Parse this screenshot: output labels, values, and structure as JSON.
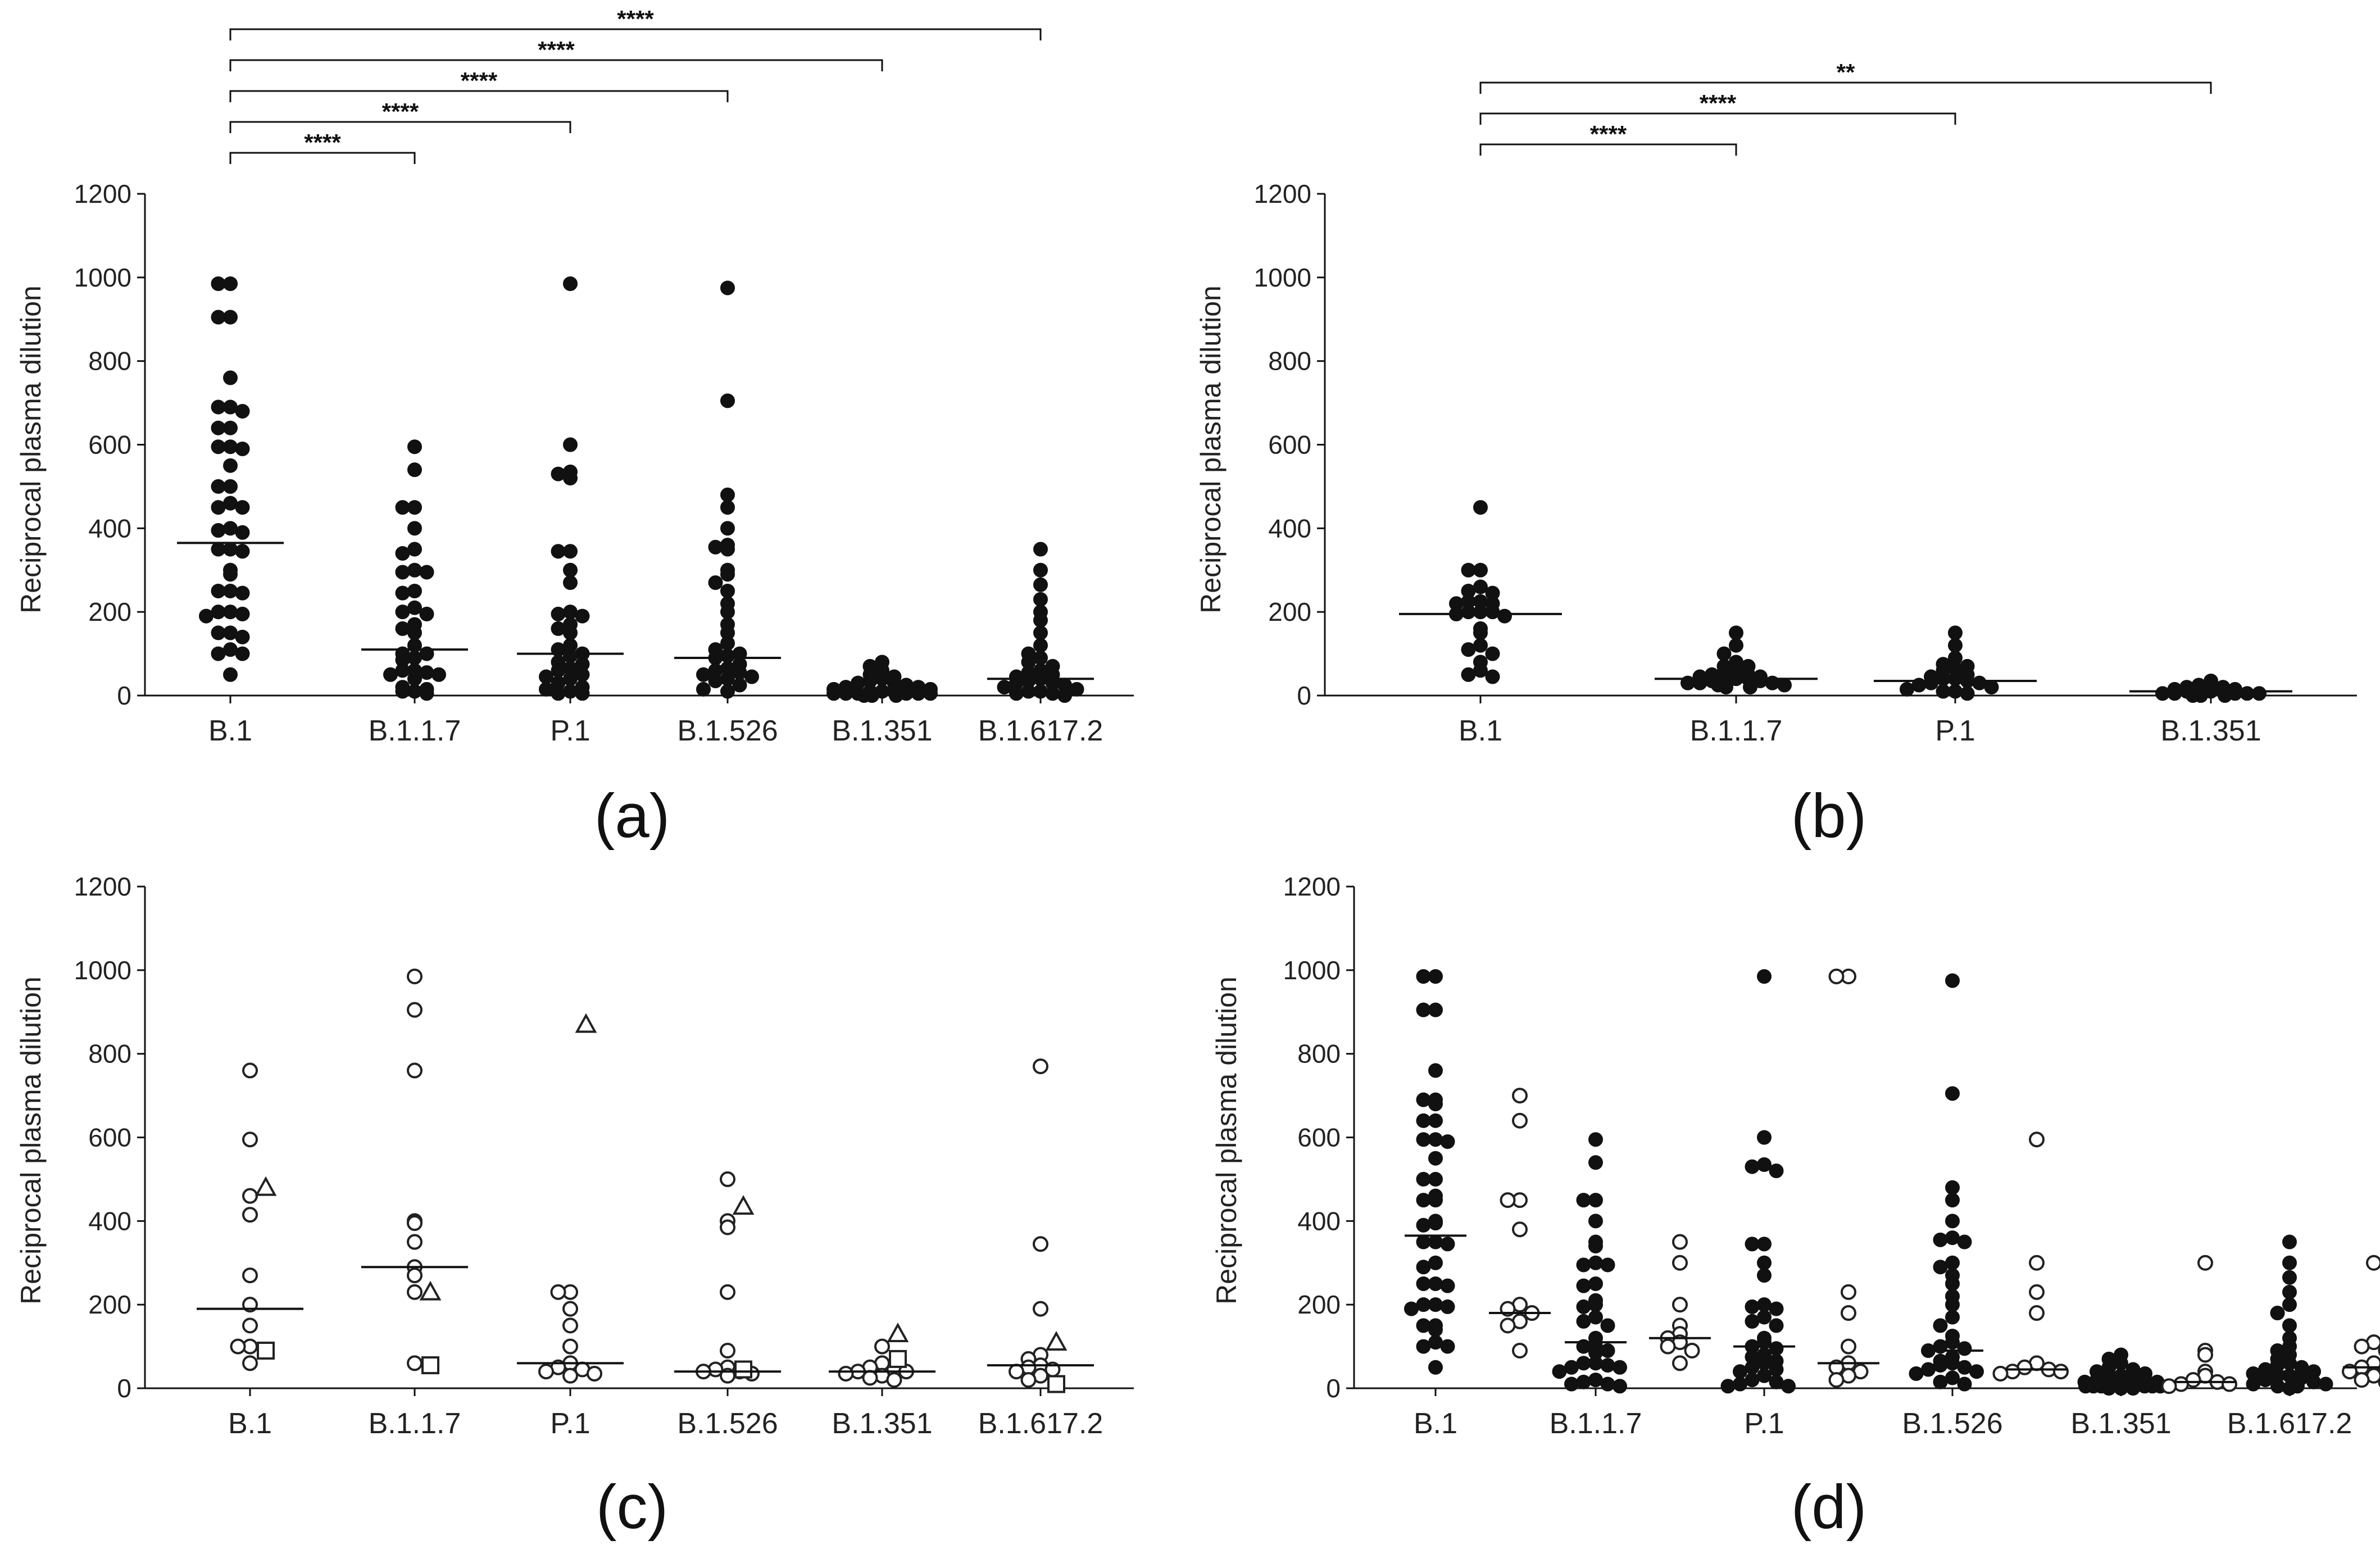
{
  "chart_data": [
    {
      "panel_label": "(a)",
      "type": "scatter",
      "ylabel": "Reciprocal plasma dilution",
      "ylim": [
        0,
        1200
      ],
      "yticks": [
        "0",
        "200",
        "400",
        "600",
        "800",
        "1000",
        "1200"
      ],
      "categories": [
        "B.1",
        "B.1.1.7",
        "P.1",
        "B.1.526",
        "B.1.351",
        "B.1.617.2"
      ],
      "medians": [
        365,
        110,
        100,
        90,
        10,
        40
      ],
      "series": [
        {
          "name": "filled",
          "groups": [
            [
              985,
              985,
              905,
              905,
              760,
              690,
              690,
              680,
              640,
              640,
              595,
              595,
              590,
              550,
              500,
              500,
              460,
              450,
              450,
              400,
              395,
              390,
              350,
              350,
              345,
              300,
              290,
              250,
              250,
              245,
              200,
              200,
              195,
              190,
              150,
              150,
              140,
              110,
              100,
              100,
              50
            ],
            [
              595,
              540,
              450,
              450,
              400,
              350,
              340,
              300,
              295,
              295,
              250,
              245,
              210,
              200,
              195,
              170,
              160,
              150,
              120,
              100,
              100,
              90,
              85,
              60,
              60,
              55,
              50,
              50,
              40,
              20,
              15,
              10,
              10,
              5
            ],
            [
              985,
              600,
              535,
              530,
              520,
              345,
              345,
              300,
              270,
              200,
              195,
              190,
              170,
              160,
              150,
              120,
              110,
              100,
              95,
              80,
              75,
              65,
              60,
              50,
              45,
              40,
              30,
              20,
              15,
              10,
              5,
              5
            ],
            [
              975,
              705,
              480,
              450,
              400,
              360,
              355,
              350,
              300,
              290,
              270,
              250,
              220,
              200,
              170,
              150,
              125,
              110,
              100,
              95,
              90,
              75,
              65,
              60,
              55,
              50,
              45,
              40,
              35,
              25,
              15,
              10
            ],
            [
              80,
              70,
              60,
              50,
              45,
              40,
              35,
              30,
              30,
              25,
              20,
              20,
              15,
              15,
              10,
              10,
              10,
              5,
              5,
              5,
              5,
              5,
              5,
              0,
              0,
              0
            ],
            [
              350,
              300,
              265,
              230,
              200,
              180,
              150,
              120,
              100,
              90,
              80,
              70,
              60,
              55,
              50,
              45,
              40,
              35,
              30,
              30,
              25,
              20,
              15,
              10,
              10,
              5,
              5,
              0
            ]
          ]
        }
      ],
      "significance": [
        {
          "from": "B.1",
          "to": "B.1.1.7",
          "label": "****"
        },
        {
          "from": "B.1",
          "to": "P.1",
          "label": "****"
        },
        {
          "from": "B.1",
          "to": "B.1.526",
          "label": "****"
        },
        {
          "from": "B.1",
          "to": "B.1.351",
          "label": "****"
        },
        {
          "from": "B.1",
          "to": "B.1.617.2",
          "label": "****"
        }
      ]
    },
    {
      "panel_label": "(b)",
      "type": "scatter",
      "ylabel": "Reciprocal plasma dilution",
      "ylim": [
        0,
        1200
      ],
      "yticks": [
        "0",
        "200",
        "400",
        "600",
        "800",
        "1000",
        "1200"
      ],
      "categories": [
        "B.1",
        "B.1.1.7",
        "P.1",
        "B.1.351"
      ],
      "medians": [
        195,
        40,
        35,
        10
      ],
      "series": [
        {
          "name": "filled",
          "groups": [
            [
              450,
              300,
              300,
              260,
              250,
              245,
              225,
              225,
              220,
              220,
              200,
              200,
              200,
              195,
              190,
              160,
              150,
              120,
              110,
              100,
              80,
              60,
              50,
              45
            ],
            [
              150,
              120,
              100,
              80,
              70,
              70,
              60,
              55,
              50,
              50,
              45,
              45,
              40,
              40,
              40,
              35,
              35,
              30,
              30,
              30,
              25,
              25,
              20,
              20
            ],
            [
              150,
              120,
              90,
              75,
              70,
              65,
              60,
              50,
              45,
              40,
              40,
              35,
              30,
              30,
              25,
              20,
              15,
              10,
              10,
              5
            ],
            [
              35,
              25,
              20,
              20,
              15,
              15,
              10,
              10,
              10,
              10,
              5,
              5,
              5,
              5,
              5,
              0,
              0,
              0
            ]
          ]
        }
      ],
      "significance": [
        {
          "from": "B.1",
          "to": "B.1.1.7",
          "label": "****"
        },
        {
          "from": "B.1",
          "to": "P.1",
          "label": "****"
        },
        {
          "from": "B.1",
          "to": "B.1.351",
          "label": "**"
        }
      ]
    },
    {
      "panel_label": "(c)",
      "type": "scatter",
      "ylabel": "Reciprocal plasma dilution",
      "ylim": [
        0,
        1200
      ],
      "yticks": [
        "0",
        "200",
        "400",
        "600",
        "800",
        "1000",
        "1200"
      ],
      "categories": [
        "B.1",
        "B.1.1.7",
        "P.1",
        "B.1.526",
        "B.1.351",
        "B.1.617.2"
      ],
      "medians": [
        190,
        290,
        60,
        40,
        40,
        55
      ],
      "series": [
        {
          "name": "open-circle",
          "groups": [
            [
              760,
              595,
              460,
              415,
              270,
              200,
              150,
              100,
              100,
              60
            ],
            [
              985,
              905,
              760,
              400,
              395,
              350,
              290,
              270,
              230,
              60
            ],
            [
              230,
              230,
              190,
              150,
              100,
              60,
              50,
              45,
              40,
              35,
              30
            ],
            [
              500,
              400,
              385,
              230,
              90,
              50,
              45,
              40,
              40,
              35,
              30
            ],
            [
              100,
              60,
              50,
              45,
              40,
              40,
              35,
              30,
              25,
              20
            ],
            [
              770,
              345,
              190,
              80,
              70,
              55,
              50,
              45,
              40,
              30,
              20
            ]
          ]
        },
        {
          "name": "open-triangle",
          "groups": [
            [
              480
            ],
            [
              230
            ],
            [
              870
            ],
            [
              435
            ],
            [
              130
            ],
            [
              110
            ]
          ]
        },
        {
          "name": "open-square",
          "groups": [
            [
              90
            ],
            [
              55
            ],
            [],
            [
              45
            ],
            [
              70
            ],
            [
              10
            ]
          ]
        }
      ]
    },
    {
      "panel_label": "(d)",
      "type": "scatter",
      "ylabel": "Reciprocal plasma dilution",
      "ylim": [
        0,
        1200
      ],
      "yticks": [
        "0",
        "200",
        "400",
        "600",
        "800",
        "1000",
        "1200"
      ],
      "categories": [
        "B.1",
        "B.1.1.7",
        "P.1",
        "B.1.526",
        "B.1.351",
        "B.1.617.2"
      ],
      "medians_filled": [
        365,
        110,
        100,
        90,
        10,
        40
      ],
      "medians_open": [
        180,
        120,
        60,
        45,
        15,
        50
      ],
      "series": [
        {
          "name": "filled",
          "groups": [
            [
              985,
              985,
              905,
              905,
              760,
              690,
              690,
              680,
              640,
              640,
              595,
              595,
              590,
              550,
              500,
              500,
              460,
              450,
              450,
              400,
              395,
              390,
              350,
              350,
              345,
              300,
              290,
              250,
              250,
              245,
              200,
              200,
              195,
              190,
              150,
              150,
              140,
              110,
              100,
              100,
              50
            ],
            [
              595,
              540,
              450,
              450,
              400,
              350,
              340,
              300,
              295,
              295,
              250,
              245,
              210,
              200,
              195,
              170,
              160,
              150,
              120,
              100,
              100,
              90,
              85,
              60,
              60,
              55,
              50,
              50,
              40,
              20,
              15,
              10,
              10,
              5
            ],
            [
              985,
              600,
              535,
              530,
              520,
              345,
              345,
              300,
              270,
              200,
              195,
              190,
              170,
              160,
              150,
              120,
              110,
              100,
              95,
              80,
              75,
              65,
              60,
              50,
              45,
              40,
              30,
              20,
              15,
              10,
              5,
              5
            ],
            [
              975,
              705,
              480,
              450,
              400,
              360,
              355,
              350,
              300,
              290,
              270,
              250,
              220,
              200,
              170,
              150,
              125,
              110,
              100,
              95,
              90,
              75,
              65,
              60,
              55,
              50,
              45,
              40,
              35,
              25,
              15,
              10
            ],
            [
              80,
              70,
              60,
              50,
              45,
              40,
              35,
              30,
              30,
              25,
              20,
              20,
              15,
              15,
              10,
              10,
              10,
              5,
              5,
              5,
              5,
              5,
              5,
              0,
              0,
              0
            ],
            [
              350,
              300,
              265,
              230,
              200,
              180,
              150,
              120,
              100,
              90,
              80,
              70,
              60,
              55,
              50,
              45,
              40,
              35,
              30,
              30,
              25,
              20,
              15,
              10,
              10,
              5,
              5,
              0
            ]
          ]
        },
        {
          "name": "open",
          "groups": [
            [
              700,
              640,
              450,
              450,
              380,
              200,
              190,
              180,
              160,
              150,
              90
            ],
            [
              350,
              300,
              200,
              150,
              130,
              120,
              110,
              100,
              90,
              60
            ],
            [
              985,
              985,
              230,
              180,
              100,
              60,
              50,
              40,
              30,
              20
            ],
            [
              595,
              300,
              230,
              180,
              60,
              50,
              45,
              40,
              40,
              35
            ],
            [
              300,
              90,
              80,
              40,
              30,
              20,
              15,
              10,
              10,
              5
            ],
            [
              300,
              110,
              100,
              90,
              60,
              50,
              45,
              40,
              30,
              20,
              15
            ]
          ]
        }
      ]
    }
  ]
}
